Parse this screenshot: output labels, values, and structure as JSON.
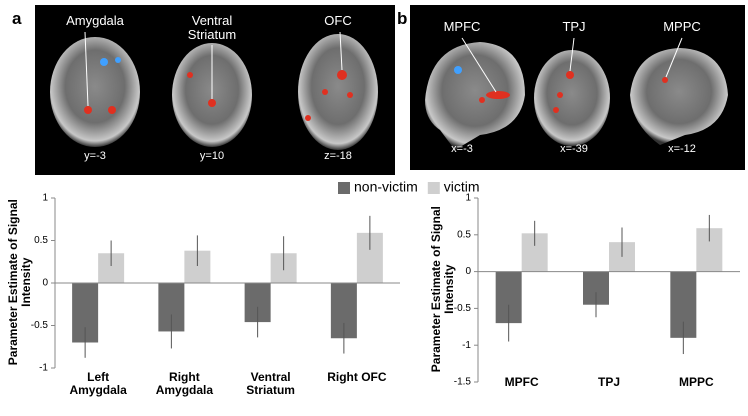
{
  "figure": {
    "panels": [
      {
        "label": "a",
        "images": [
          {
            "region": "Amygdala",
            "coord": "y=-3"
          },
          {
            "region": "Ventral Striatum",
            "coord": "y=10"
          },
          {
            "region": "OFC",
            "coord": "z=-18"
          }
        ]
      },
      {
        "label": "b",
        "images": [
          {
            "region": "MPFC",
            "coord": "x=-3"
          },
          {
            "region": "TPJ",
            "coord": "x=-39"
          },
          {
            "region": "MPPC",
            "coord": "x=-12"
          }
        ]
      }
    ]
  },
  "chart_data": [
    {
      "type": "bar",
      "ylabel": "Parameter Estimate of Signal Intensity",
      "categories": [
        "Left Amygdala",
        "Right Amygdala",
        "Ventral Striatum",
        "Right  OFC"
      ],
      "series": [
        {
          "name": "non-victim",
          "color": "#6b6b6b",
          "values": [
            -0.7,
            -0.57,
            -0.46,
            -0.65
          ],
          "errors": [
            0.18,
            0.2,
            0.18,
            0.18
          ]
        },
        {
          "name": "victim",
          "color": "#cfcfcf",
          "values": [
            0.35,
            0.38,
            0.35,
            0.59
          ],
          "errors": [
            0.15,
            0.18,
            0.2,
            0.2
          ]
        }
      ],
      "ylim": [
        -1,
        1
      ],
      "yticks": [
        -1,
        -0.5,
        0,
        0.5,
        1
      ],
      "legend": "top"
    },
    {
      "type": "bar",
      "ylabel": "Parameter Estimate of Signal Intensity",
      "categories": [
        "MPFC",
        "TPJ",
        "MPPC"
      ],
      "series": [
        {
          "color": "#6b6b6b",
          "values": [
            -0.7,
            -0.45,
            -0.9
          ],
          "errors": [
            0.25,
            0.17,
            0.22
          ]
        },
        {
          "color": "#cfcfcf",
          "values": [
            0.52,
            0.4,
            0.59
          ],
          "errors": [
            0.17,
            0.2,
            0.18
          ]
        }
      ],
      "ylim": [
        -1.5,
        1
      ],
      "yticks": [
        -1.5,
        -1,
        -0.5,
        0,
        0.5,
        1
      ]
    }
  ]
}
